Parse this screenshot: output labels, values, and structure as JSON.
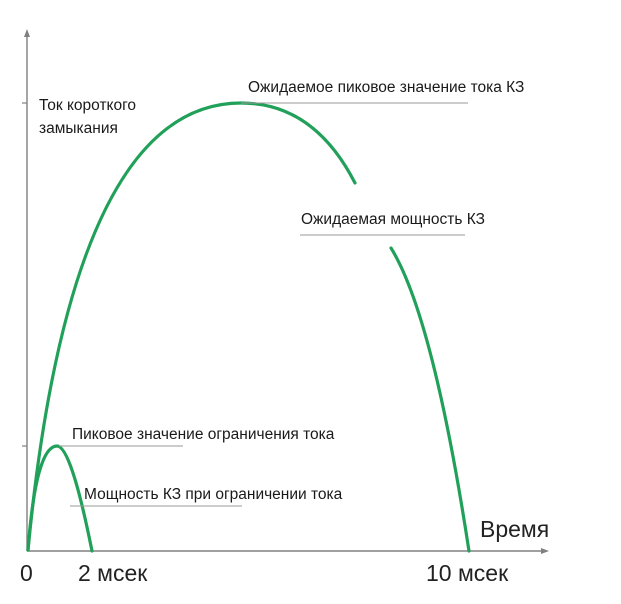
{
  "colors": {
    "curve": "#21a05a",
    "axis": "#808080",
    "leader": "#9a9a9a",
    "text": "#1a1a1a"
  },
  "axes": {
    "y_label_line1": "Ток короткого",
    "y_label_line2": "замыкания",
    "x_label": "Время",
    "origin_label": "0",
    "tick_2ms_label": "2 мсек",
    "tick_10ms_label": "10 мсек"
  },
  "annotations": {
    "expected_peak_current": "Ожидаемое пиковое значение тока КЗ",
    "expected_sc_power": "Ожидаемая мощность КЗ",
    "limited_peak_current": "Пиковое значение ограничения тока",
    "limited_sc_power": "Мощность КЗ при ограничении тока"
  }
}
